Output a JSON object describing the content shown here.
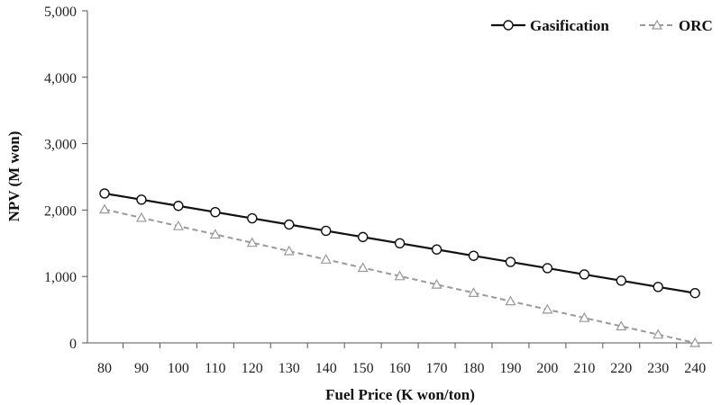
{
  "chart_data": {
    "type": "line",
    "xlabel": "Fuel Price (K won/ton)",
    "ylabel": "NPV (M won)",
    "x": [
      80,
      90,
      100,
      110,
      120,
      130,
      140,
      150,
      160,
      170,
      180,
      190,
      200,
      210,
      220,
      230,
      240
    ],
    "xlim": [
      80,
      240
    ],
    "ylim": [
      0,
      5000
    ],
    "yticks": [
      0,
      1000,
      2000,
      3000,
      4000,
      5000
    ],
    "ytick_labels": [
      "0",
      "1,000",
      "2,000",
      "3,000",
      "4,000",
      "5,000"
    ],
    "grid": false,
    "legend_position": "top-right",
    "series": [
      {
        "name": "Gasification",
        "color": "#111111",
        "line_style": "solid",
        "marker": "circle",
        "values": [
          2250,
          2157,
          2063,
          1969,
          1876,
          1782,
          1688,
          1594,
          1500,
          1406,
          1312,
          1219,
          1125,
          1031,
          937,
          843,
          750
        ]
      },
      {
        "name": "ORC",
        "color": "#999999",
        "line_style": "dashed",
        "marker": "triangle",
        "values": [
          2010,
          1884,
          1759,
          1633,
          1508,
          1382,
          1256,
          1131,
          1005,
          879,
          754,
          628,
          503,
          377,
          251,
          126,
          0
        ]
      }
    ]
  }
}
